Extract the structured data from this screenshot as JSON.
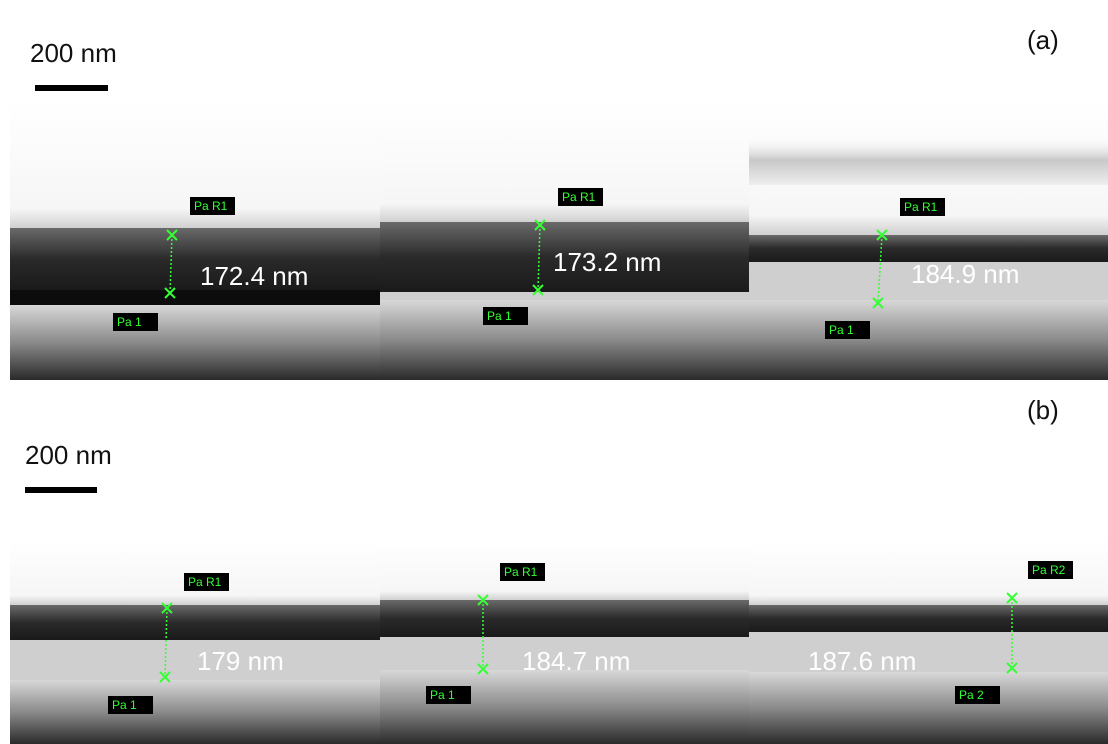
{
  "panels": [
    {
      "label": "(a)",
      "scale": "200 nm",
      "images": [
        {
          "top_marker": "Pa R1",
          "bottom_marker": "Pa 1",
          "measurement": "172.4 nm"
        },
        {
          "top_marker": "Pa R1",
          "bottom_marker": "Pa 1",
          "measurement": "173.2 nm"
        },
        {
          "top_marker": "Pa R1",
          "bottom_marker": "Pa 1",
          "measurement": "184.9 nm"
        }
      ]
    },
    {
      "label": "(b)",
      "scale": "200 nm",
      "images": [
        {
          "top_marker": "Pa R1",
          "bottom_marker": "Pa 1",
          "measurement": "179 nm"
        },
        {
          "top_marker": "Pa R1",
          "bottom_marker": "Pa 1",
          "measurement": "184.7 nm"
        },
        {
          "top_marker": "Pa R2",
          "bottom_marker": "Pa 2",
          "measurement": "187.6 nm"
        }
      ]
    }
  ]
}
